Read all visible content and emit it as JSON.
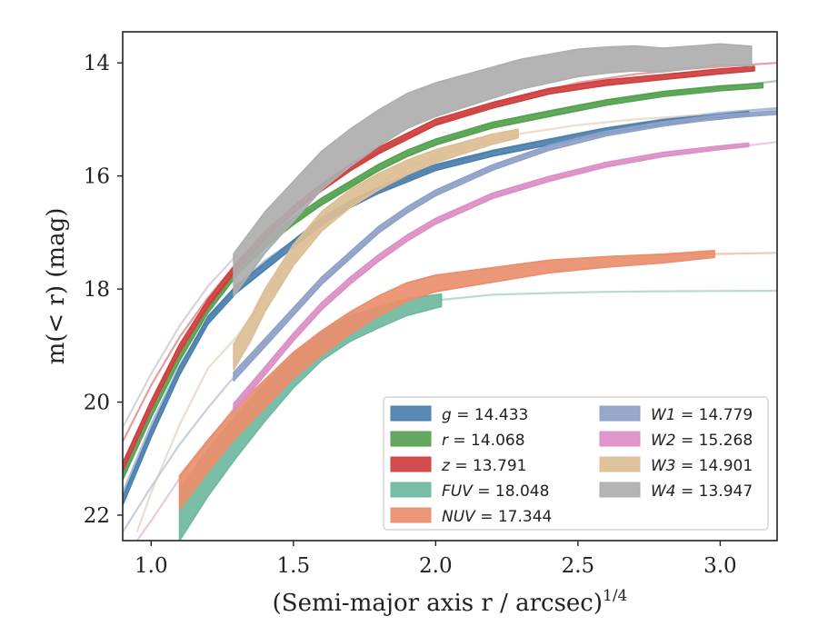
{
  "chart_data": {
    "type": "line",
    "title": "",
    "xlabel": "(Semi-major axis r / arcsec)",
    "xlabel_exponent": "1/4",
    "ylabel": "m(< r) (mag)",
    "xlim": [
      0.9,
      3.2
    ],
    "ylim": [
      22.45,
      13.45
    ],
    "y_inverted": true,
    "x_ticks": [
      1.0,
      1.5,
      2.0,
      2.5,
      3.0
    ],
    "x_tick_labels": [
      "1.0",
      "1.5",
      "2.0",
      "2.5",
      "3.0"
    ],
    "y_ticks": [
      14,
      16,
      18,
      20,
      22
    ],
    "y_tick_labels": [
      "14",
      "16",
      "18",
      "20",
      "22"
    ],
    "grid": false,
    "legend_position": "bottom-right",
    "series": [
      {
        "name": "g",
        "total": "14.433",
        "color": "#4c7fad",
        "band": [
          [
            0.9,
            21.75
          ],
          [
            1.0,
            20.55
          ],
          [
            1.1,
            19.45
          ],
          [
            1.2,
            18.55
          ],
          [
            1.3,
            18.0
          ],
          [
            1.4,
            17.6
          ],
          [
            1.5,
            17.2
          ],
          [
            1.6,
            16.8
          ],
          [
            1.7,
            16.5
          ],
          [
            1.8,
            16.25
          ],
          [
            1.9,
            16.05
          ],
          [
            2.0,
            15.85
          ],
          [
            2.2,
            15.6
          ],
          [
            2.4,
            15.4
          ],
          [
            2.6,
            15.2
          ],
          [
            2.8,
            15.05
          ],
          [
            3.0,
            14.95
          ],
          [
            3.1,
            14.9
          ]
        ],
        "band_width": [
          0.15,
          0.08
        ],
        "model": [
          [
            0.9,
            21.6
          ],
          [
            1.0,
            20.4
          ],
          [
            1.1,
            19.35
          ],
          [
            1.2,
            18.55
          ],
          [
            1.3,
            17.95
          ],
          [
            1.4,
            17.5
          ],
          [
            1.6,
            16.8
          ],
          [
            1.8,
            16.25
          ],
          [
            2.0,
            15.85
          ],
          [
            2.2,
            15.55
          ],
          [
            2.4,
            15.35
          ],
          [
            2.6,
            15.15
          ],
          [
            2.8,
            15.0
          ],
          [
            3.0,
            14.88
          ],
          [
            3.2,
            14.8
          ]
        ]
      },
      {
        "name": "r",
        "total": "14.068",
        "color": "#55a150",
        "band": [
          [
            0.9,
            21.3
          ],
          [
            1.0,
            20.2
          ],
          [
            1.1,
            19.2
          ],
          [
            1.2,
            18.35
          ],
          [
            1.3,
            17.7
          ],
          [
            1.4,
            17.2
          ],
          [
            1.5,
            16.8
          ],
          [
            1.6,
            16.45
          ],
          [
            1.7,
            16.15
          ],
          [
            1.8,
            15.85
          ],
          [
            1.9,
            15.6
          ],
          [
            2.0,
            15.4
          ],
          [
            2.2,
            15.1
          ],
          [
            2.4,
            14.9
          ],
          [
            2.6,
            14.7
          ],
          [
            2.8,
            14.55
          ],
          [
            3.0,
            14.45
          ],
          [
            3.15,
            14.4
          ]
        ],
        "band_width": [
          0.15,
          0.08
        ],
        "model": [
          [
            0.9,
            21.1
          ],
          [
            1.0,
            20.0
          ],
          [
            1.1,
            19.1
          ],
          [
            1.2,
            18.3
          ],
          [
            1.3,
            17.7
          ],
          [
            1.5,
            16.8
          ],
          [
            1.7,
            16.15
          ],
          [
            1.9,
            15.65
          ],
          [
            2.1,
            15.25
          ],
          [
            2.3,
            14.95
          ],
          [
            2.5,
            14.75
          ],
          [
            2.7,
            14.6
          ],
          [
            2.9,
            14.5
          ],
          [
            3.2,
            14.32
          ]
        ]
      },
      {
        "name": "z",
        "total": "13.791",
        "color": "#cf3e3e",
        "band": [
          [
            0.9,
            21.15
          ],
          [
            1.0,
            20.05
          ],
          [
            1.1,
            19.05
          ],
          [
            1.2,
            18.25
          ],
          [
            1.3,
            17.6
          ],
          [
            1.4,
            17.05
          ],
          [
            1.5,
            16.6
          ],
          [
            1.6,
            16.2
          ],
          [
            1.7,
            15.85
          ],
          [
            1.8,
            15.55
          ],
          [
            1.9,
            15.3
          ],
          [
            2.0,
            15.05
          ],
          [
            2.2,
            14.75
          ],
          [
            2.4,
            14.5
          ],
          [
            2.6,
            14.35
          ],
          [
            2.8,
            14.25
          ],
          [
            3.0,
            14.15
          ],
          [
            3.12,
            14.1
          ]
        ],
        "band_width": [
          0.15,
          0.08
        ],
        "model": [
          [
            0.9,
            20.7
          ],
          [
            1.0,
            19.7
          ],
          [
            1.1,
            18.85
          ],
          [
            1.2,
            18.15
          ],
          [
            1.3,
            17.55
          ],
          [
            1.5,
            16.6
          ],
          [
            1.7,
            15.85
          ],
          [
            1.9,
            15.3
          ],
          [
            2.1,
            14.9
          ],
          [
            2.3,
            14.6
          ],
          [
            2.5,
            14.35
          ],
          [
            2.7,
            14.2
          ],
          [
            2.9,
            14.1
          ],
          [
            3.2,
            14.0
          ]
        ]
      },
      {
        "name": "FUV",
        "total": "18.048",
        "color": "#6fb89f",
        "band": [
          [
            1.1,
            22.0
          ],
          [
            1.2,
            21.25
          ],
          [
            1.3,
            20.6
          ],
          [
            1.4,
            20.0
          ],
          [
            1.5,
            19.45
          ],
          [
            1.6,
            19.0
          ],
          [
            1.7,
            18.7
          ],
          [
            1.8,
            18.5
          ],
          [
            1.9,
            18.32
          ],
          [
            2.02,
            18.2
          ]
        ],
        "band_width": [
          0.9,
          0.22
        ],
        "model": [
          [
            2.0,
            18.2
          ],
          [
            2.2,
            18.1
          ],
          [
            2.4,
            18.07
          ],
          [
            2.6,
            18.05
          ],
          [
            2.8,
            18.04
          ],
          [
            3.2,
            18.03
          ]
        ]
      },
      {
        "name": "NUV",
        "total": "17.344",
        "color": "#ea8e6d",
        "band": [
          [
            1.1,
            21.6
          ],
          [
            1.2,
            20.95
          ],
          [
            1.3,
            20.35
          ],
          [
            1.4,
            19.85
          ],
          [
            1.5,
            19.35
          ],
          [
            1.6,
            18.95
          ],
          [
            1.7,
            18.6
          ],
          [
            1.8,
            18.3
          ],
          [
            1.9,
            18.05
          ],
          [
            2.0,
            17.9
          ],
          [
            2.2,
            17.75
          ],
          [
            2.4,
            17.6
          ],
          [
            2.6,
            17.52
          ],
          [
            2.8,
            17.46
          ],
          [
            2.98,
            17.38
          ]
        ],
        "band_width": [
          0.6,
          0.12
        ],
        "model": [
          [
            2.8,
            17.4
          ],
          [
            3.0,
            17.38
          ],
          [
            3.2,
            17.36
          ]
        ]
      },
      {
        "name": "W1",
        "total": "14.779",
        "color": "#8fa1c7",
        "band": [
          [
            1.29,
            19.55
          ],
          [
            1.4,
            18.95
          ],
          [
            1.5,
            18.4
          ],
          [
            1.6,
            17.85
          ],
          [
            1.7,
            17.4
          ],
          [
            1.8,
            16.95
          ],
          [
            1.9,
            16.6
          ],
          [
            2.0,
            16.3
          ],
          [
            2.2,
            15.85
          ],
          [
            2.4,
            15.5
          ],
          [
            2.6,
            15.25
          ],
          [
            2.8,
            15.08
          ],
          [
            3.0,
            14.95
          ],
          [
            3.2,
            14.88
          ]
        ],
        "band_width": [
          0.15,
          0.06
        ],
        "model": [
          [
            0.9,
            22.3
          ],
          [
            1.0,
            21.5
          ],
          [
            1.1,
            20.75
          ],
          [
            1.2,
            20.1
          ],
          [
            1.3,
            19.5
          ],
          [
            1.5,
            18.4
          ],
          [
            1.7,
            17.4
          ],
          [
            1.9,
            16.6
          ],
          [
            2.1,
            16.05
          ],
          [
            2.3,
            15.65
          ],
          [
            2.5,
            15.35
          ],
          [
            2.7,
            15.15
          ],
          [
            2.9,
            15.0
          ],
          [
            3.2,
            14.82
          ]
        ]
      },
      {
        "name": "W2",
        "total": "15.268",
        "color": "#dc8fc4",
        "band": [
          [
            1.29,
            20.1
          ],
          [
            1.4,
            19.45
          ],
          [
            1.5,
            18.85
          ],
          [
            1.6,
            18.3
          ],
          [
            1.7,
            17.85
          ],
          [
            1.8,
            17.45
          ],
          [
            1.9,
            17.1
          ],
          [
            2.0,
            16.8
          ],
          [
            2.2,
            16.35
          ],
          [
            2.4,
            16.05
          ],
          [
            2.6,
            15.8
          ],
          [
            2.8,
            15.62
          ],
          [
            3.0,
            15.5
          ],
          [
            3.1,
            15.45
          ]
        ],
        "band_width": [
          0.15,
          0.06
        ],
        "model": [
          [
            0.95,
            22.45
          ],
          [
            1.0,
            22.1
          ],
          [
            1.1,
            21.35
          ],
          [
            1.2,
            20.7
          ],
          [
            1.3,
            20.05
          ],
          [
            1.5,
            18.85
          ],
          [
            1.7,
            17.85
          ],
          [
            1.9,
            17.1
          ],
          [
            2.1,
            16.55
          ],
          [
            2.3,
            16.2
          ],
          [
            2.5,
            15.92
          ],
          [
            2.7,
            15.72
          ],
          [
            2.9,
            15.58
          ],
          [
            3.2,
            15.4
          ]
        ]
      },
      {
        "name": "W3",
        "total": "14.901",
        "color": "#dcbe95",
        "band": [
          [
            1.29,
            19.2
          ],
          [
            1.35,
            18.7
          ],
          [
            1.4,
            18.2
          ],
          [
            1.5,
            17.4
          ],
          [
            1.6,
            16.8
          ],
          [
            1.7,
            16.4
          ],
          [
            1.8,
            16.1
          ],
          [
            1.9,
            15.85
          ],
          [
            2.0,
            15.65
          ],
          [
            2.1,
            15.5
          ],
          [
            2.2,
            15.35
          ],
          [
            2.29,
            15.25
          ]
        ],
        "band_width": [
          0.45,
          0.15
        ],
        "model": [
          [
            0.95,
            22.3
          ],
          [
            1.0,
            21.6
          ],
          [
            1.1,
            20.4
          ],
          [
            1.2,
            19.4
          ],
          [
            1.3,
            18.85
          ],
          [
            1.5,
            17.4
          ],
          [
            1.7,
            16.4
          ],
          [
            1.9,
            15.85
          ],
          [
            2.1,
            15.5
          ],
          [
            2.3,
            15.25
          ],
          [
            2.5,
            15.1
          ],
          [
            2.7,
            15.0
          ],
          [
            2.9,
            14.93
          ],
          [
            3.2,
            14.9
          ]
        ]
      },
      {
        "name": "W4",
        "total": "13.947",
        "color": "#aeaeae",
        "band": [
          [
            1.29,
            17.75
          ],
          [
            1.4,
            17.0
          ],
          [
            1.5,
            16.45
          ],
          [
            1.6,
            15.9
          ],
          [
            1.7,
            15.5
          ],
          [
            1.8,
            15.15
          ],
          [
            1.9,
            14.85
          ],
          [
            2.0,
            14.65
          ],
          [
            2.1,
            14.5
          ],
          [
            2.2,
            14.35
          ],
          [
            2.3,
            14.2
          ],
          [
            2.4,
            14.1
          ],
          [
            2.5,
            14.0
          ],
          [
            2.6,
            13.95
          ],
          [
            2.7,
            13.92
          ],
          [
            2.8,
            13.95
          ],
          [
            2.9,
            13.9
          ],
          [
            3.0,
            13.85
          ],
          [
            3.11,
            13.88
          ]
        ],
        "band_width": [
          0.75,
          0.35
        ],
        "model": [
          [
            0.9,
            20.45
          ],
          [
            1.0,
            19.5
          ],
          [
            1.1,
            18.65
          ],
          [
            1.2,
            17.95
          ],
          [
            1.3,
            17.4
          ]
        ]
      }
    ]
  }
}
